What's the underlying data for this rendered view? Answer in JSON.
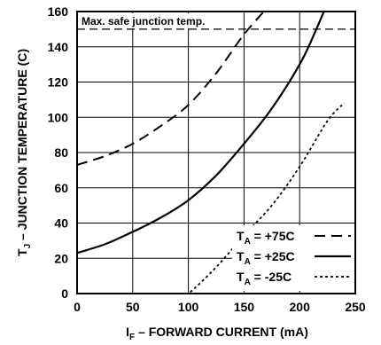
{
  "chart_data": {
    "type": "line",
    "xlabel_main": "I",
    "xlabel_sub": "F",
    "xlabel_rest": " – FORWARD CURRENT (mA)",
    "ylabel_main": "T",
    "ylabel_sub": "J",
    "ylabel_rest": " – JUNCTION TEMPERATURE (C)",
    "xlim": [
      0,
      250
    ],
    "ylim": [
      0,
      160
    ],
    "x_ticks": [
      0,
      50,
      100,
      150,
      200,
      250
    ],
    "y_ticks": [
      0,
      20,
      40,
      60,
      80,
      100,
      120,
      140,
      160
    ],
    "x_tick_labels": [
      "0",
      "50",
      "100",
      "150",
      "200",
      "250"
    ],
    "y_tick_labels": [
      "0",
      "20",
      "40",
      "60",
      "80",
      "100",
      "120",
      "140",
      "160"
    ],
    "grid": true,
    "legend_placement": "bottom-right",
    "annotation": {
      "text": "Max. safe junction temp.",
      "y": 150
    },
    "series": [
      {
        "legend_main": "T",
        "legend_sub": "A",
        "legend_rest": " = +75C",
        "line_style": "dashed",
        "points": [
          [
            0,
            73
          ],
          [
            25,
            78
          ],
          [
            50,
            85
          ],
          [
            75,
            95
          ],
          [
            100,
            107
          ],
          [
            125,
            125
          ],
          [
            150,
            147
          ],
          [
            175,
            165
          ]
        ]
      },
      {
        "legend_main": "T",
        "legend_sub": "A",
        "legend_rest": " = +25C",
        "line_style": "solid",
        "points": [
          [
            0,
            23
          ],
          [
            25,
            28
          ],
          [
            50,
            35
          ],
          [
            75,
            43
          ],
          [
            100,
            53
          ],
          [
            125,
            67
          ],
          [
            150,
            85
          ],
          [
            175,
            105
          ],
          [
            200,
            130
          ],
          [
            215,
            150
          ],
          [
            227,
            168
          ]
        ]
      },
      {
        "legend_main": "T",
        "legend_sub": "A",
        "legend_rest": " = -25C",
        "line_style": "dotted",
        "points": [
          [
            85,
            -5
          ],
          [
            100,
            0
          ],
          [
            125,
            15
          ],
          [
            150,
            33
          ],
          [
            175,
            50
          ],
          [
            200,
            72
          ],
          [
            225,
            98
          ],
          [
            240,
            108
          ]
        ]
      }
    ]
  }
}
